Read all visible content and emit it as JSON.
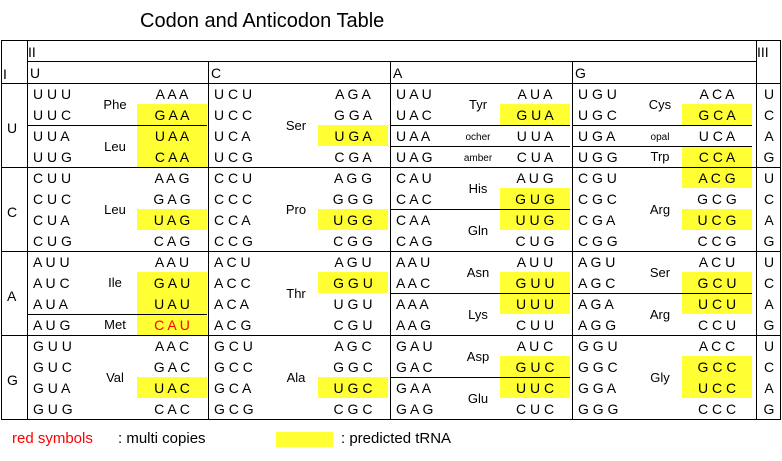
{
  "title": "Codon and Anticodon Table",
  "position_labels": {
    "first": "I",
    "second": "II",
    "third": "III"
  },
  "second_bases": [
    "U",
    "C",
    "A",
    "G"
  ],
  "first_bases": [
    "U",
    "C",
    "A",
    "G"
  ],
  "third_bases": [
    "U",
    "C",
    "A",
    "G"
  ],
  "colors": {
    "highlight": "#ffff33",
    "multi_copy": "#ff0000"
  },
  "blocks": [
    [
      {
        "rows": [
          {
            "codon": "U U U",
            "anti": "A A A",
            "hl": false
          },
          {
            "codon": "U U C",
            "anti": "G A A",
            "hl": true
          },
          {
            "codon": "U U A",
            "anti": "U A A",
            "hl": true
          },
          {
            "codon": "U U G",
            "anti": "C A A",
            "hl": true
          }
        ],
        "aa": [
          {
            "text": "Phe",
            "pos": 0.5,
            "small": false
          },
          {
            "text": "Leu",
            "pos": 2.5,
            "small": false
          }
        ],
        "dividers": [
          2
        ]
      },
      {
        "rows": [
          {
            "codon": "U C U",
            "anti": "A G A",
            "hl": false
          },
          {
            "codon": "U C C",
            "anti": "G G A",
            "hl": false
          },
          {
            "codon": "U C A",
            "anti": "U G A",
            "hl": true
          },
          {
            "codon": "U C G",
            "anti": "C G A",
            "hl": false
          }
        ],
        "aa": [
          {
            "text": "Ser",
            "pos": 1.5,
            "small": false
          }
        ],
        "dividers": []
      },
      {
        "rows": [
          {
            "codon": "U A U",
            "anti": "A U A",
            "hl": false
          },
          {
            "codon": "U A C",
            "anti": "G U A",
            "hl": true
          },
          {
            "codon": "U A A",
            "anti": "U U A",
            "hl": false
          },
          {
            "codon": "U A G",
            "anti": "C U A",
            "hl": false
          }
        ],
        "aa": [
          {
            "text": "Tyr",
            "pos": 0.5,
            "small": false
          },
          {
            "text": "ocher",
            "pos": 2,
            "small": true
          },
          {
            "text": "amber",
            "pos": 3,
            "small": true
          }
        ],
        "dividers": [
          2,
          3
        ]
      },
      {
        "rows": [
          {
            "codon": "U G U",
            "anti": "A C A",
            "hl": false
          },
          {
            "codon": "U G C",
            "anti": "G C A",
            "hl": true
          },
          {
            "codon": "U G A",
            "anti": "U C A",
            "hl": false
          },
          {
            "codon": "U G G",
            "anti": "C C A",
            "hl": true
          }
        ],
        "aa": [
          {
            "text": "Cys",
            "pos": 0.5,
            "small": false
          },
          {
            "text": "opal",
            "pos": 2,
            "small": true
          },
          {
            "text": "Trp",
            "pos": 3,
            "small": false
          }
        ],
        "dividers": [
          2,
          3
        ]
      }
    ],
    [
      {
        "rows": [
          {
            "codon": "C U U",
            "anti": "A A G",
            "hl": false
          },
          {
            "codon": "C U C",
            "anti": "G A G",
            "hl": false
          },
          {
            "codon": "C U A",
            "anti": "U A G",
            "hl": true
          },
          {
            "codon": "C U G",
            "anti": "C A G",
            "hl": false
          }
        ],
        "aa": [
          {
            "text": "Leu",
            "pos": 1.5,
            "small": false
          }
        ],
        "dividers": []
      },
      {
        "rows": [
          {
            "codon": "C C U",
            "anti": "A G G",
            "hl": false
          },
          {
            "codon": "C C C",
            "anti": "G G G",
            "hl": false
          },
          {
            "codon": "C C A",
            "anti": "U G G",
            "hl": true
          },
          {
            "codon": "C C G",
            "anti": "C G G",
            "hl": false
          }
        ],
        "aa": [
          {
            "text": "Pro",
            "pos": 1.5,
            "small": false
          }
        ],
        "dividers": []
      },
      {
        "rows": [
          {
            "codon": "C A U",
            "anti": "A U G",
            "hl": false
          },
          {
            "codon": "C A C",
            "anti": "G U G",
            "hl": true
          },
          {
            "codon": "C A A",
            "anti": "U U G",
            "hl": true
          },
          {
            "codon": "C A G",
            "anti": "C U G",
            "hl": false
          }
        ],
        "aa": [
          {
            "text": "His",
            "pos": 0.5,
            "small": false
          },
          {
            "text": "Gln",
            "pos": 2.5,
            "small": false
          }
        ],
        "dividers": [
          2
        ]
      },
      {
        "rows": [
          {
            "codon": "C G U",
            "anti": "A C G",
            "hl": true
          },
          {
            "codon": "C G C",
            "anti": "G C G",
            "hl": false
          },
          {
            "codon": "C G A",
            "anti": "U C G",
            "hl": true
          },
          {
            "codon": "C G G",
            "anti": "C C G",
            "hl": false
          }
        ],
        "aa": [
          {
            "text": "Arg",
            "pos": 1.5,
            "small": false
          }
        ],
        "dividers": []
      }
    ],
    [
      {
        "rows": [
          {
            "codon": "A U U",
            "anti": "A A U",
            "hl": false
          },
          {
            "codon": "A U C",
            "anti": "G A U",
            "hl": true
          },
          {
            "codon": "A U A",
            "anti": "U A U",
            "hl": true
          },
          {
            "codon": "A U G",
            "anti": "C A U",
            "hl": true,
            "red": true
          }
        ],
        "aa": [
          {
            "text": "Ile",
            "pos": 1,
            "small": false
          },
          {
            "text": "Met",
            "pos": 3,
            "small": false
          }
        ],
        "dividers": [
          3
        ]
      },
      {
        "rows": [
          {
            "codon": "A C U",
            "anti": "A G U",
            "hl": false
          },
          {
            "codon": "A C C",
            "anti": "G G U",
            "hl": true
          },
          {
            "codon": "A C A",
            "anti": "U G U",
            "hl": false
          },
          {
            "codon": "A C G",
            "anti": "C G U",
            "hl": false
          }
        ],
        "aa": [
          {
            "text": "Thr",
            "pos": 1.5,
            "small": false
          }
        ],
        "dividers": []
      },
      {
        "rows": [
          {
            "codon": "A A U",
            "anti": "A U U",
            "hl": false
          },
          {
            "codon": "A A C",
            "anti": "G U U",
            "hl": true
          },
          {
            "codon": "A A A",
            "anti": "U U U",
            "hl": true
          },
          {
            "codon": "A A G",
            "anti": "C U U",
            "hl": false
          }
        ],
        "aa": [
          {
            "text": "Asn",
            "pos": 0.5,
            "small": false
          },
          {
            "text": "Lys",
            "pos": 2.5,
            "small": false
          }
        ],
        "dividers": [
          2
        ]
      },
      {
        "rows": [
          {
            "codon": "A G U",
            "anti": "A C U",
            "hl": false
          },
          {
            "codon": "A G C",
            "anti": "G C U",
            "hl": true
          },
          {
            "codon": "A G A",
            "anti": "U C U",
            "hl": true
          },
          {
            "codon": "A G G",
            "anti": "C C U",
            "hl": false
          }
        ],
        "aa": [
          {
            "text": "Ser",
            "pos": 0.5,
            "small": false
          },
          {
            "text": "Arg",
            "pos": 2.5,
            "small": false
          }
        ],
        "dividers": [
          2
        ]
      }
    ],
    [
      {
        "rows": [
          {
            "codon": "G U U",
            "anti": "A A C",
            "hl": false
          },
          {
            "codon": "G U C",
            "anti": "G A C",
            "hl": false
          },
          {
            "codon": "G U A",
            "anti": "U A C",
            "hl": true
          },
          {
            "codon": "G U G",
            "anti": "C A C",
            "hl": false
          }
        ],
        "aa": [
          {
            "text": "Val",
            "pos": 1.5,
            "small": false
          }
        ],
        "dividers": []
      },
      {
        "rows": [
          {
            "codon": "G C U",
            "anti": "A G C",
            "hl": false
          },
          {
            "codon": "G C C",
            "anti": "G G C",
            "hl": false
          },
          {
            "codon": "G C A",
            "anti": "U G C",
            "hl": true
          },
          {
            "codon": "G C G",
            "anti": "C G C",
            "hl": false
          }
        ],
        "aa": [
          {
            "text": "Ala",
            "pos": 1.5,
            "small": false
          }
        ],
        "dividers": []
      },
      {
        "rows": [
          {
            "codon": "G A U",
            "anti": "A U C",
            "hl": false
          },
          {
            "codon": "G A C",
            "anti": "G U C",
            "hl": true
          },
          {
            "codon": "G A A",
            "anti": "U U C",
            "hl": true
          },
          {
            "codon": "G A G",
            "anti": "C U C",
            "hl": false
          }
        ],
        "aa": [
          {
            "text": "Asp",
            "pos": 0.5,
            "small": false
          },
          {
            "text": "Glu",
            "pos": 2.5,
            "small": false
          }
        ],
        "dividers": [
          2
        ]
      },
      {
        "rows": [
          {
            "codon": "G G U",
            "anti": "A C C",
            "hl": false
          },
          {
            "codon": "G G C",
            "anti": "G C C",
            "hl": true
          },
          {
            "codon": "G G A",
            "anti": "U C C",
            "hl": true
          },
          {
            "codon": "G G G",
            "anti": "C C C",
            "hl": false
          }
        ],
        "aa": [
          {
            "text": "Gly",
            "pos": 1.5,
            "small": false
          }
        ],
        "dividers": []
      }
    ]
  ],
  "legend": {
    "red_label": "red symbols",
    "red_desc": ":  multi copies",
    "highlight_desc": ": predicted tRNA"
  }
}
